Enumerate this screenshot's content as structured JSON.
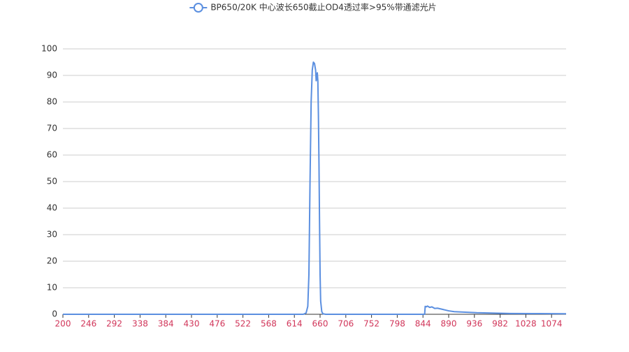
{
  "chart_data": {
    "type": "line",
    "series": [
      {
        "name": "BP650/20K 中心波长650截止OD4透过率>95%带通滤光片",
        "color": "#5b8fe0",
        "x": [
          200,
          400,
          600,
          630,
          635,
          638,
          640,
          642,
          644,
          646,
          648,
          650,
          652,
          653,
          654,
          655,
          656,
          657,
          658,
          659,
          660,
          661,
          663,
          665,
          670,
          800,
          847,
          848,
          850,
          852,
          856,
          860,
          865,
          870,
          880,
          890,
          900,
          920,
          940,
          960,
          980,
          1000,
          1050,
          1100
        ],
        "values": [
          0,
          0,
          0,
          0,
          0.5,
          3,
          15,
          50,
          80,
          92,
          95,
          94.5,
          92,
          88,
          89,
          91,
          88,
          75,
          57,
          35,
          15,
          5,
          1,
          0.2,
          0,
          0,
          0,
          3,
          2.8,
          3.1,
          2.6,
          2.8,
          2.2,
          2.3,
          1.8,
          1.3,
          1,
          0.8,
          0.6,
          0.5,
          0.4,
          0.3,
          0.25,
          0.2
        ]
      }
    ],
    "xlim": [
      200,
      1100
    ],
    "xticks": [
      200,
      246,
      292,
      338,
      384,
      430,
      476,
      522,
      568,
      614,
      660,
      706,
      752,
      798,
      844,
      890,
      936,
      982,
      1028,
      1074
    ],
    "ylim": [
      0,
      100
    ],
    "yticks": [
      0,
      10,
      20,
      30,
      40,
      50,
      60,
      70,
      80,
      90,
      100
    ],
    "grid": true
  }
}
